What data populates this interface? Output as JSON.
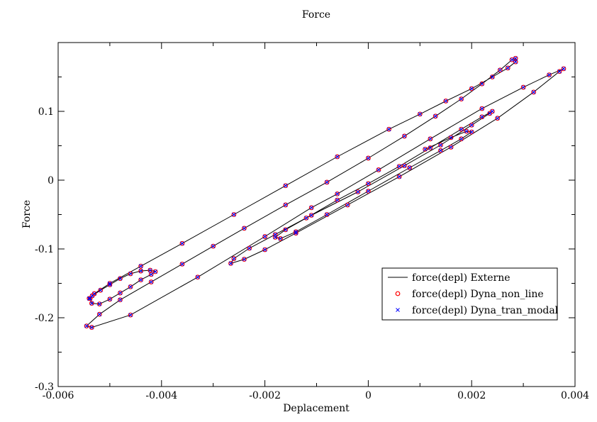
{
  "chart_data": {
    "type": "scatter",
    "title": "Force",
    "xlabel": "Deplacement",
    "ylabel": "Force",
    "xlim": [
      -0.006,
      0.004
    ],
    "ylim": [
      -0.3,
      0.2
    ],
    "xticks": [
      -0.006,
      -0.004,
      -0.002,
      0,
      0.002,
      0.004
    ],
    "xtick_labels": [
      "-0.006",
      "-0.004",
      "-0.002",
      "0",
      "0.002",
      "0.004"
    ],
    "yticks": [
      -0.3,
      -0.2,
      -0.1,
      0,
      0.1
    ],
    "ytick_labels": [
      "-0.3",
      "-0.2",
      "-0.1",
      "0",
      "0.1"
    ],
    "grid": false,
    "legend_position": "lower-right",
    "series": [
      {
        "name": "force(depl) Externe",
        "style": "line",
        "color": "#000000"
      },
      {
        "name": "force(depl) Dyna_non_line",
        "style": "circle-marker",
        "color": "#ff0000"
      },
      {
        "name": "force(depl) Dyna_tran_modal",
        "style": "x-marker",
        "color": "#0000ff"
      }
    ],
    "x": [
      -0.0054,
      -0.00534,
      -0.00518,
      -0.005,
      -0.0048,
      -0.0046,
      -0.0044,
      -0.00422,
      -0.00412,
      -0.0042,
      -0.0044,
      -0.0046,
      -0.0048,
      -0.005,
      -0.0052,
      -0.00535,
      -0.00538,
      -0.0053,
      -0.005,
      -0.0044,
      -0.0036,
      -0.0026,
      -0.0016,
      -0.0006,
      0.0004,
      0.001,
      0.0015,
      0.002,
      0.0024,
      0.0027,
      0.00285,
      0.00285,
      0.00278,
      0.00255,
      0.0022,
      0.0018,
      0.0013,
      0.0007,
      0.0,
      -0.0008,
      -0.0016,
      -0.0024,
      -0.003,
      -0.0036,
      -0.0042,
      -0.0048,
      -0.0052,
      -0.00545,
      -0.00535,
      -0.0046,
      -0.0033,
      -0.002,
      -0.0011,
      -0.0006,
      0.0002,
      0.0012,
      0.0022,
      0.003,
      0.0035,
      0.00378,
      0.0037,
      0.0032,
      0.0025,
      0.0016,
      0.0006,
      -0.0004,
      -0.0014,
      -0.002,
      -0.0024,
      -0.00266,
      -0.0026,
      -0.0023,
      -0.0018,
      -0.0011,
      -0.0002,
      0.0007,
      0.0014,
      0.002,
      0.00235,
      0.0024,
      0.0022,
      0.0018,
      0.0012,
      0.0006,
      0.0,
      -0.0006,
      -0.0012,
      -0.0016,
      -0.0018,
      -0.0017,
      -0.0014,
      -0.0008,
      0.0,
      0.0008,
      0.0014,
      0.0018,
      0.002,
      0.0019,
      0.0016,
      0.0011
    ],
    "y": [
      -0.172,
      -0.168,
      -0.16,
      -0.152,
      -0.143,
      -0.136,
      -0.132,
      -0.131,
      -0.133,
      -0.137,
      -0.145,
      -0.155,
      -0.164,
      -0.173,
      -0.18,
      -0.179,
      -0.172,
      -0.165,
      -0.15,
      -0.125,
      -0.092,
      -0.05,
      -0.008,
      0.034,
      0.074,
      0.096,
      0.115,
      0.133,
      0.15,
      0.163,
      0.172,
      0.177,
      0.175,
      0.16,
      0.14,
      0.118,
      0.093,
      0.064,
      0.032,
      -0.003,
      -0.036,
      -0.07,
      -0.096,
      -0.122,
      -0.148,
      -0.174,
      -0.195,
      -0.212,
      -0.214,
      -0.196,
      -0.141,
      -0.082,
      -0.04,
      -0.02,
      0.015,
      0.06,
      0.104,
      0.135,
      0.153,
      0.162,
      0.158,
      0.128,
      0.09,
      0.048,
      0.005,
      -0.036,
      -0.077,
      -0.101,
      -0.115,
      -0.121,
      -0.114,
      -0.099,
      -0.079,
      -0.051,
      -0.017,
      0.021,
      0.051,
      0.08,
      0.097,
      0.1,
      0.092,
      0.074,
      0.047,
      0.02,
      -0.005,
      -0.029,
      -0.055,
      -0.072,
      -0.083,
      -0.085,
      -0.075,
      -0.05,
      -0.016,
      0.018,
      0.043,
      0.06,
      0.07,
      0.071,
      0.062,
      0.045
    ]
  }
}
